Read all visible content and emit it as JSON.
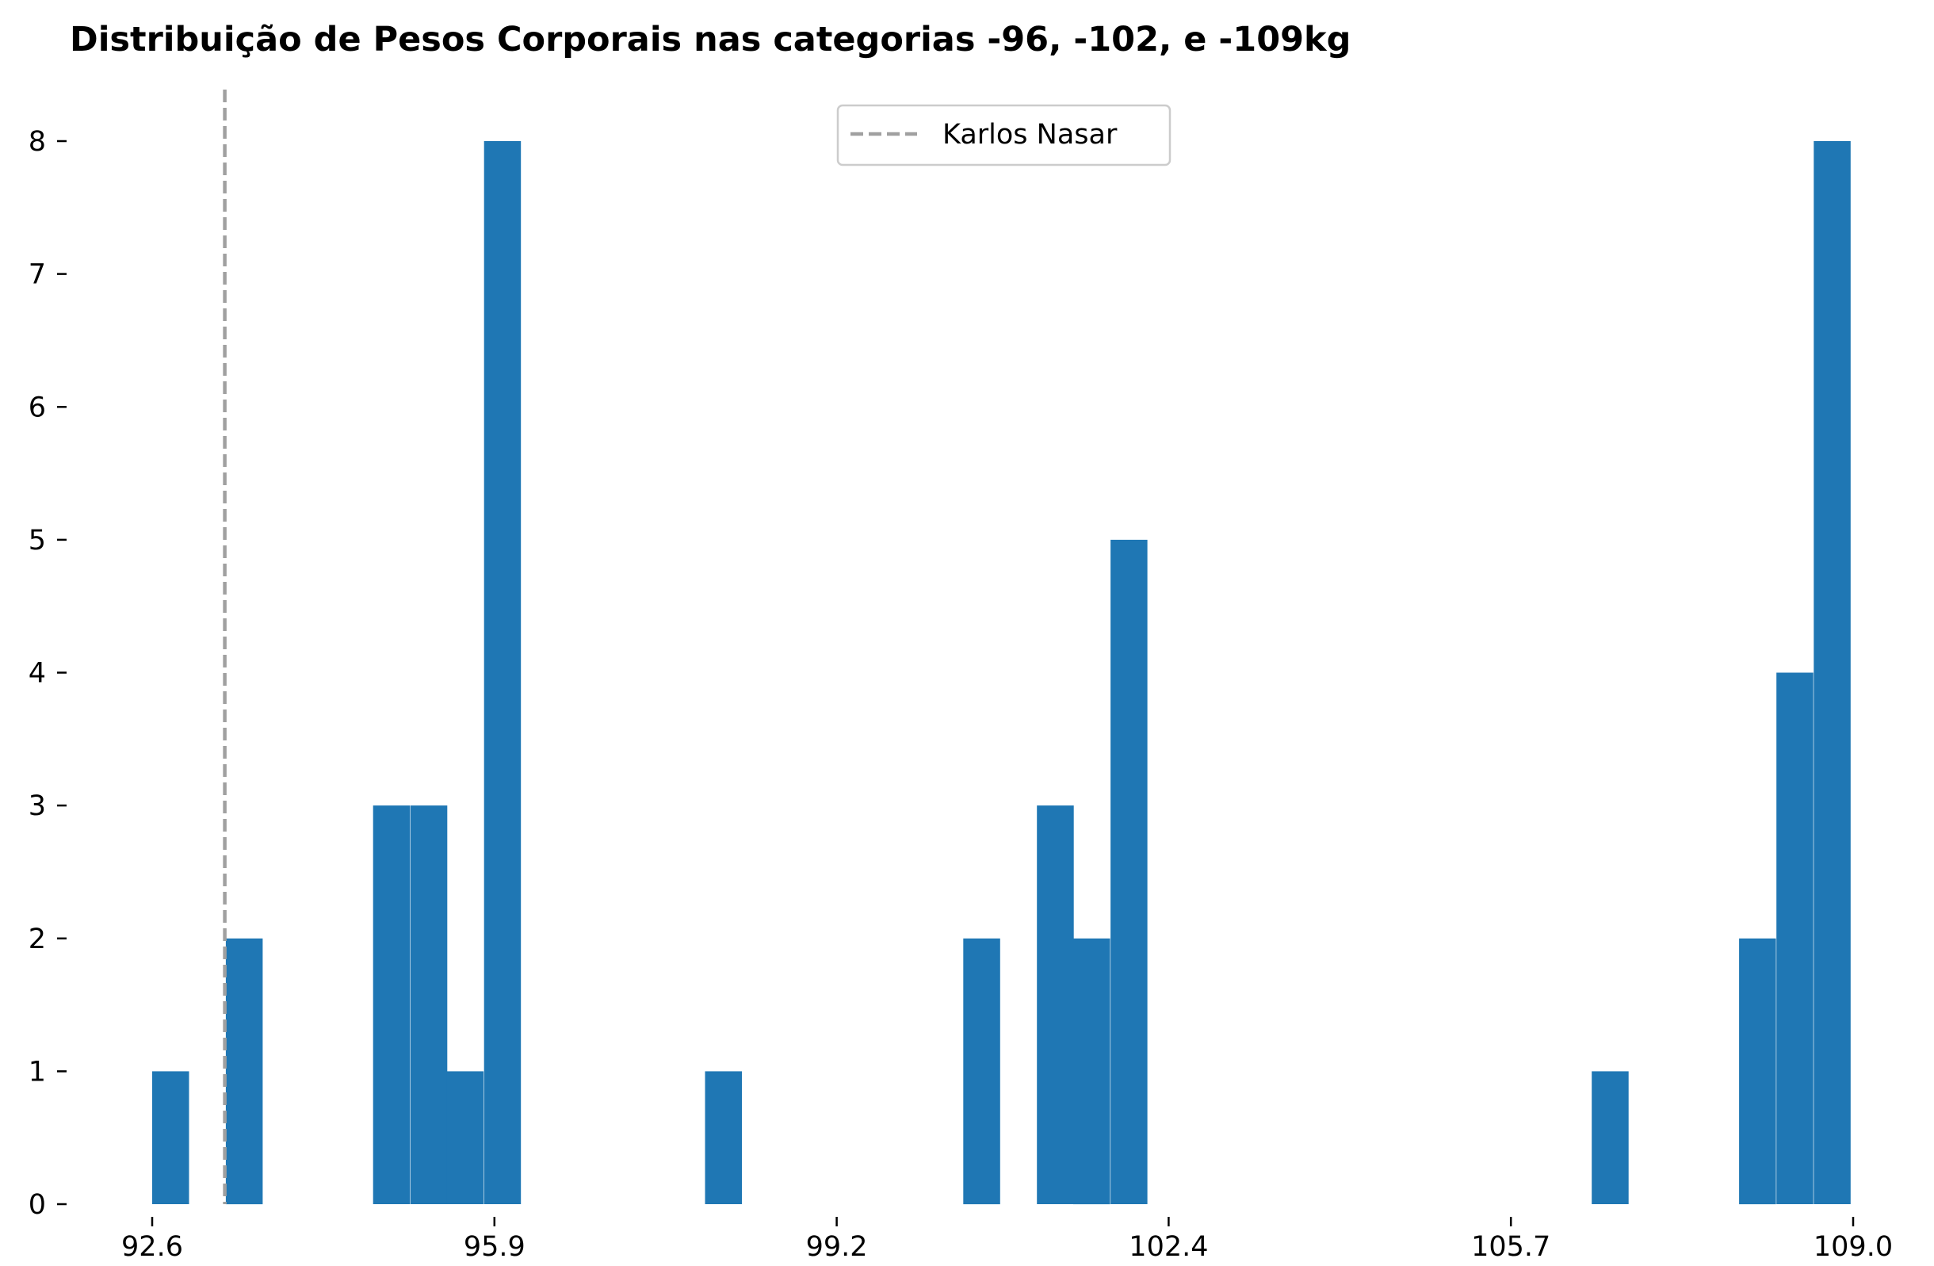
{
  "chart_data": {
    "type": "bar",
    "title": "Distribuição de Pesos Corporais nas categorias -96, -102, e -109kg",
    "xlabel": "",
    "ylabel": "",
    "xlim": [
      92.6,
      109.0
    ],
    "ylim": [
      0,
      8
    ],
    "x_ticks": [
      "92.6",
      "95.9",
      "99.2",
      "102.4",
      "105.7",
      "109.0"
    ],
    "y_ticks": [
      "0",
      "1",
      "2",
      "3",
      "4",
      "5",
      "6",
      "7",
      "8"
    ],
    "bin_width": 0.355,
    "bins": [
      {
        "x0": 92.6,
        "count": 1
      },
      {
        "x0": 93.31,
        "count": 2
      },
      {
        "x0": 94.73,
        "count": 3
      },
      {
        "x0": 95.09,
        "count": 3
      },
      {
        "x0": 95.44,
        "count": 1
      },
      {
        "x0": 95.8,
        "count": 8
      },
      {
        "x0": 97.93,
        "count": 1
      },
      {
        "x0": 100.42,
        "count": 2
      },
      {
        "x0": 101.13,
        "count": 3
      },
      {
        "x0": 101.48,
        "count": 2
      },
      {
        "x0": 101.84,
        "count": 5
      },
      {
        "x0": 106.48,
        "count": 1
      },
      {
        "x0": 107.9,
        "count": 2
      },
      {
        "x0": 108.26,
        "count": 4
      },
      {
        "x0": 108.62,
        "count": 8
      }
    ],
    "reference_line": {
      "x": 93.3,
      "label": "Karlos Nasar",
      "color": "#a0a0a0",
      "style": "dashed"
    },
    "bar_color": "#1f77b4",
    "legend_placement": "top-center",
    "grid": false
  }
}
